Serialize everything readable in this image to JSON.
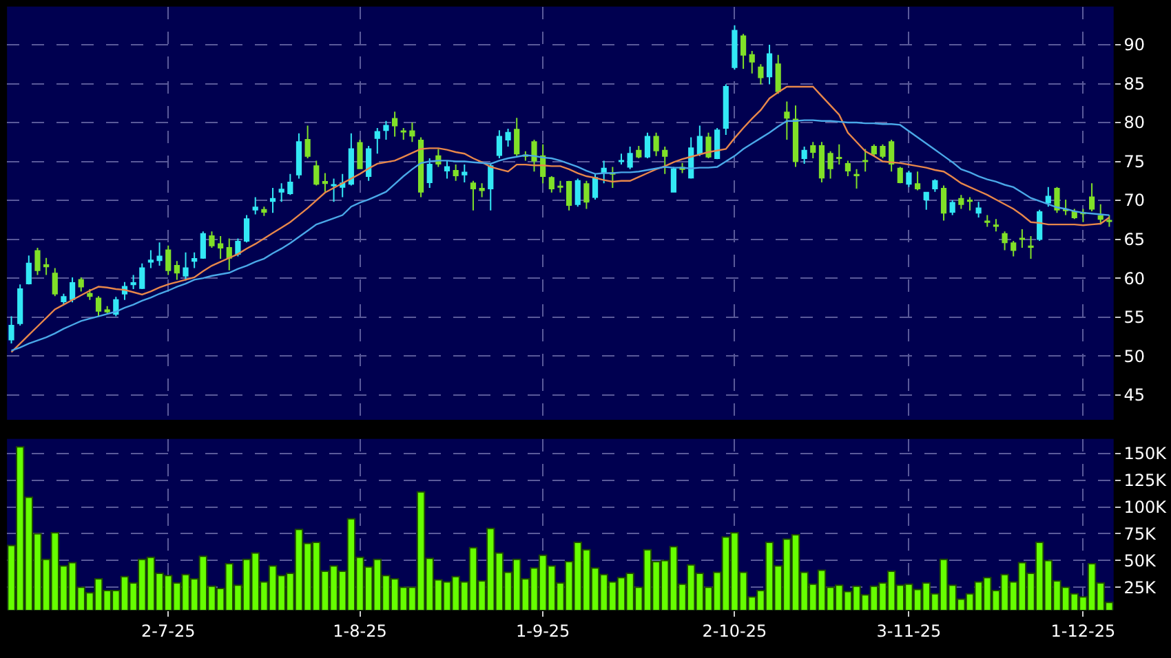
{
  "chart_data": [
    {
      "type": "candlestick",
      "categories": [
        null,
        null,
        null,
        null,
        null,
        null,
        null,
        null,
        null,
        null,
        null,
        null,
        null,
        null,
        null,
        null,
        null,
        null,
        null,
        null,
        null,
        null,
        null,
        null,
        null,
        null,
        null,
        null,
        null,
        null,
        null,
        null,
        null,
        null,
        null,
        null,
        null,
        null,
        null,
        null,
        null,
        null,
        null,
        null,
        null,
        null,
        null,
        null,
        null,
        null,
        null,
        null,
        null,
        null,
        null,
        null,
        null,
        null,
        null,
        null,
        null,
        null,
        null,
        null,
        null,
        null,
        null,
        null,
        null,
        null,
        null,
        null,
        null,
        null,
        null,
        null,
        null,
        null,
        null,
        null,
        null,
        null,
        null,
        null,
        null,
        null,
        null,
        null,
        null,
        null,
        null,
        null,
        null,
        null,
        null,
        null,
        null,
        null,
        null,
        null,
        null,
        null,
        null,
        null,
        null,
        null,
        null,
        null,
        null,
        null,
        null,
        null,
        null,
        null,
        null,
        null,
        null,
        null,
        null,
        null,
        null,
        null,
        null,
        null,
        null,
        null,
        null
      ],
      "ohlc": [
        [
          52.1,
          55.1,
          51.6,
          53.9
        ],
        [
          54.2,
          59.2,
          53.9,
          58.6
        ],
        [
          59.3,
          62.9,
          59.2,
          61.9
        ],
        [
          63.5,
          63.9,
          60.4,
          61.0
        ],
        [
          61.7,
          62.6,
          60.4,
          61.5
        ],
        [
          60.6,
          61.3,
          57.7,
          58.0
        ],
        [
          57.0,
          58.0,
          56.6,
          57.6
        ],
        [
          57.3,
          60.1,
          56.9,
          59.4
        ],
        [
          59.8,
          60.1,
          58.3,
          58.9
        ],
        [
          58.0,
          58.6,
          57.2,
          57.7
        ],
        [
          57.4,
          57.7,
          55.1,
          55.8
        ],
        [
          55.9,
          56.4,
          55.4,
          55.7
        ],
        [
          55.4,
          57.6,
          55.1,
          57.2
        ],
        [
          58.0,
          59.5,
          57.2,
          58.9
        ],
        [
          59.2,
          60.4,
          58.6,
          59.4
        ],
        [
          58.7,
          61.9,
          58.6,
          61.3
        ],
        [
          62.1,
          63.6,
          61.3,
          62.3
        ],
        [
          62.3,
          64.6,
          61.6,
          62.8
        ],
        [
          63.6,
          64.2,
          60.4,
          61.0
        ],
        [
          61.6,
          62.2,
          59.8,
          60.7
        ],
        [
          60.3,
          63.3,
          59.7,
          61.3
        ],
        [
          62.2,
          63.3,
          61.3,
          62.5
        ],
        [
          62.6,
          66.0,
          62.5,
          65.7
        ],
        [
          65.4,
          66.0,
          63.9,
          64.2
        ],
        [
          64.4,
          65.4,
          62.5,
          63.9
        ],
        [
          63.9,
          65.1,
          61.0,
          62.6
        ],
        [
          63.1,
          65.1,
          62.8,
          64.7
        ],
        [
          64.8,
          68.1,
          64.6,
          67.6
        ],
        [
          68.8,
          70.4,
          68.2,
          69.1
        ],
        [
          68.8,
          69.2,
          68.0,
          68.5
        ],
        [
          69.9,
          71.6,
          68.4,
          70.2
        ],
        [
          71.1,
          72.2,
          69.8,
          71.4
        ],
        [
          70.9,
          73.4,
          70.7,
          72.3
        ],
        [
          73.3,
          78.6,
          72.8,
          77.5
        ],
        [
          77.8,
          79.6,
          75.4,
          75.7
        ],
        [
          74.4,
          75.1,
          71.9,
          72.1
        ],
        [
          72.4,
          73.5,
          71.1,
          72.2
        ],
        [
          71.9,
          72.8,
          69.8,
          72.0
        ],
        [
          71.7,
          73.4,
          70.4,
          72.2
        ],
        [
          72.1,
          78.6,
          71.9,
          76.6
        ],
        [
          77.4,
          77.8,
          74.0,
          74.1
        ],
        [
          73.1,
          77.0,
          72.5,
          76.6
        ],
        [
          78.0,
          79.3,
          76.0,
          78.8
        ],
        [
          79.0,
          80.2,
          77.8,
          79.6
        ],
        [
          80.5,
          81.4,
          78.2,
          79.6
        ],
        [
          78.9,
          79.3,
          77.8,
          78.8
        ],
        [
          78.9,
          80.0,
          77.5,
          78.3
        ],
        [
          77.7,
          78.1,
          70.4,
          71.1
        ],
        [
          72.3,
          75.4,
          71.6,
          74.6
        ],
        [
          75.7,
          76.6,
          74.3,
          74.7
        ],
        [
          73.8,
          75.1,
          72.8,
          74.3
        ],
        [
          73.8,
          74.6,
          72.5,
          73.2
        ],
        [
          73.3,
          74.6,
          72.3,
          73.6
        ],
        [
          72.2,
          72.5,
          68.7,
          71.5
        ],
        [
          71.5,
          72.2,
          70.4,
          71.3
        ],
        [
          71.5,
          74.8,
          68.7,
          74.4
        ],
        [
          75.8,
          79.0,
          75.4,
          78.2
        ],
        [
          77.8,
          79.2,
          76.9,
          78.7
        ],
        [
          79.1,
          80.6,
          75.7,
          76.0
        ],
        [
          75.8,
          76.3,
          75.1,
          75.7
        ],
        [
          77.5,
          77.8,
          73.7,
          75.1
        ],
        [
          75.7,
          77.2,
          72.2,
          73.1
        ],
        [
          72.9,
          73.1,
          71.0,
          71.5
        ],
        [
          71.8,
          72.5,
          71.0,
          71.7
        ],
        [
          72.4,
          72.5,
          68.7,
          69.4
        ],
        [
          69.5,
          72.8,
          69.2,
          72.5
        ],
        [
          72.1,
          72.5,
          68.9,
          69.8
        ],
        [
          70.4,
          73.4,
          70.1,
          72.9
        ],
        [
          73.6,
          75.1,
          72.2,
          74.1
        ],
        [
          73.5,
          74.3,
          71.6,
          73.4
        ],
        [
          75.0,
          76.0,
          74.6,
          75.1
        ],
        [
          74.3,
          76.9,
          74.0,
          76.0
        ],
        [
          76.4,
          77.0,
          75.4,
          75.6
        ],
        [
          75.6,
          78.7,
          75.4,
          78.2
        ],
        [
          78.2,
          78.7,
          75.7,
          76.4
        ],
        [
          76.4,
          76.9,
          73.4,
          75.7
        ],
        [
          71.1,
          74.3,
          71.0,
          74.0
        ],
        [
          74.2,
          74.8,
          73.5,
          74.0
        ],
        [
          72.9,
          78.1,
          72.8,
          76.7
        ],
        [
          76.0,
          79.6,
          75.7,
          78.2
        ],
        [
          78.1,
          78.7,
          75.4,
          75.6
        ],
        [
          75.4,
          79.3,
          75.3,
          79.0
        ],
        [
          79.3,
          84.9,
          78.4,
          84.6
        ],
        [
          87.1,
          92.5,
          86.8,
          91.8
        ],
        [
          91.1,
          91.4,
          86.9,
          88.7
        ],
        [
          88.7,
          89.2,
          86.3,
          87.8
        ],
        [
          87.1,
          87.5,
          84.9,
          85.8
        ],
        [
          85.9,
          90.0,
          84.9,
          88.8
        ],
        [
          87.5,
          88.7,
          83.7,
          84.0
        ],
        [
          81.3,
          82.7,
          77.8,
          80.6
        ],
        [
          80.4,
          82.2,
          74.3,
          75.0
        ],
        [
          75.4,
          76.9,
          74.7,
          76.4
        ],
        [
          77.0,
          77.5,
          75.4,
          76.2
        ],
        [
          77.0,
          77.5,
          72.3,
          72.9
        ],
        [
          76.0,
          76.3,
          72.8,
          74.1
        ],
        [
          75.5,
          77.2,
          74.6,
          75.4
        ],
        [
          74.7,
          75.1,
          73.1,
          73.8
        ],
        [
          73.3,
          74.0,
          71.5,
          73.2
        ],
        [
          75.1,
          76.6,
          73.7,
          75.0
        ],
        [
          76.9,
          77.2,
          75.7,
          76.0
        ],
        [
          76.9,
          77.2,
          75.4,
          75.7
        ],
        [
          77.5,
          77.8,
          73.7,
          74.7
        ],
        [
          74.1,
          74.3,
          72.2,
          72.3
        ],
        [
          72.1,
          73.8,
          71.7,
          73.5
        ],
        [
          72.1,
          73.7,
          71.3,
          71.5
        ],
        [
          70.1,
          71.1,
          68.8,
          71.0
        ],
        [
          71.5,
          72.7,
          71.1,
          72.5
        ],
        [
          71.5,
          71.9,
          67.4,
          68.4
        ],
        [
          68.5,
          70.0,
          68.1,
          69.7
        ],
        [
          70.2,
          70.7,
          68.9,
          69.5
        ],
        [
          70.0,
          70.4,
          68.7,
          69.9
        ],
        [
          68.4,
          69.8,
          67.8,
          69.0
        ],
        [
          67.3,
          68.1,
          66.6,
          67.2
        ],
        [
          66.8,
          67.6,
          66.0,
          66.7
        ],
        [
          65.7,
          66.0,
          63.6,
          64.6
        ],
        [
          64.5,
          64.8,
          62.8,
          63.6
        ],
        [
          65.1,
          66.3,
          63.9,
          65.0
        ],
        [
          64.1,
          65.4,
          62.5,
          64.0
        ],
        [
          65.0,
          68.8,
          64.8,
          68.5
        ],
        [
          69.7,
          71.7,
          69.2,
          70.5
        ],
        [
          71.5,
          71.7,
          68.4,
          68.8
        ],
        [
          68.8,
          70.1,
          68.1,
          68.7
        ],
        [
          68.5,
          68.9,
          67.6,
          67.8
        ],
        [
          68.4,
          68.9,
          67.2,
          68.3
        ],
        [
          70.4,
          72.2,
          68.6,
          68.9
        ],
        [
          68.0,
          69.5,
          66.9,
          67.6
        ],
        [
          67.4,
          68.1,
          66.6,
          67.3
        ]
      ],
      "colors": [
        "#33e8f5",
        "#33e8f5",
        "#33e8f5",
        "#80e028",
        "#80e028",
        "#80e028",
        "#33e8f5",
        "#33e8f5",
        "#80e028",
        "#80e028",
        "#80e028",
        "#80e028",
        "#33e8f5",
        "#33e8f5",
        "#33e8f5",
        "#33e8f5",
        "#33e8f5",
        "#33e8f5",
        "#80e028",
        "#80e028",
        "#33e8f5",
        "#33e8f5",
        "#33e8f5",
        "#80e028",
        "#80e028",
        "#80e028",
        "#33e8f5",
        "#33e8f5",
        "#33e8f5",
        "#80e028",
        "#33e8f5",
        "#33e8f5",
        "#33e8f5",
        "#33e8f5",
        "#80e028",
        "#80e028",
        "#80e028",
        "#33e8f5",
        "#33e8f5",
        "#33e8f5",
        "#80e028",
        "#33e8f5",
        "#33e8f5",
        "#33e8f5",
        "#80e028",
        "#80e028",
        "#80e028",
        "#80e028",
        "#33e8f5",
        "#80e028",
        "#33e8f5",
        "#80e028",
        "#33e8f5",
        "#80e028",
        "#80e028",
        "#33e8f5",
        "#33e8f5",
        "#33e8f5",
        "#80e028",
        "#80e028",
        "#80e028",
        "#80e028",
        "#80e028",
        "#80e028",
        "#80e028",
        "#33e8f5",
        "#80e028",
        "#33e8f5",
        "#33e8f5",
        "#80e028",
        "#33e8f5",
        "#33e8f5",
        "#80e028",
        "#33e8f5",
        "#80e028",
        "#80e028",
        "#33e8f5",
        "#80e028",
        "#33e8f5",
        "#33e8f5",
        "#80e028",
        "#33e8f5",
        "#33e8f5",
        "#33e8f5",
        "#80e028",
        "#80e028",
        "#80e028",
        "#33e8f5",
        "#80e028",
        "#80e028",
        "#80e028",
        "#33e8f5",
        "#80e028",
        "#80e028",
        "#80e028",
        "#80e028",
        "#80e028",
        "#80e028",
        "#80e028",
        "#80e028",
        "#80e028",
        "#80e028",
        "#80e028",
        "#33e8f5",
        "#80e028",
        "#33e8f5",
        "#33e8f5",
        "#80e028",
        "#33e8f5",
        "#80e028",
        "#80e028",
        "#33e8f5",
        "#80e028",
        "#80e028",
        "#80e028",
        "#80e028",
        "#80e028",
        "#80e028",
        "#33e8f5",
        "#33e8f5",
        "#80e028",
        "#80e028",
        "#80e028",
        "#80e028",
        "#80e028",
        "#80e028",
        "#80e028"
      ],
      "series": [
        {
          "type": "line",
          "color": "#e8874a",
          "values": [
            50.5,
            51.6,
            52.7,
            53.8,
            54.9,
            56.0,
            56.6,
            57.2,
            57.8,
            58.4,
            58.9,
            58.8,
            58.6,
            58.5,
            58.2,
            57.9,
            58.3,
            58.8,
            59.2,
            59.5,
            59.8,
            60.1,
            60.9,
            61.6,
            62.1,
            62.6,
            63.1,
            63.8,
            64.4,
            65.1,
            65.8,
            66.5,
            67.2,
            68.1,
            69.0,
            70.0,
            71.0,
            71.6,
            72.2,
            72.8,
            73.4,
            74.1,
            74.7,
            74.9,
            75.1,
            75.6,
            76.1,
            76.6,
            76.7,
            76.7,
            76.5,
            76.2,
            76.0,
            75.4,
            74.9,
            74.3,
            74.0,
            73.7,
            74.6,
            74.6,
            74.5,
            74.5,
            74.4,
            74.4,
            74.0,
            73.5,
            73.1,
            72.9,
            72.6,
            72.4,
            72.5,
            72.5,
            73.0,
            73.5,
            74.0,
            74.4,
            74.9,
            75.3,
            75.6,
            75.9,
            76.2,
            76.4,
            76.6,
            78.0,
            79.3,
            80.5,
            81.6,
            83.1,
            83.9,
            84.6,
            84.6,
            84.6,
            84.6,
            83.4,
            82.2,
            81.0,
            78.7,
            77.5,
            76.3,
            75.7,
            75.0,
            74.9,
            74.8,
            74.6,
            74.4,
            74.2,
            73.9,
            73.7,
            73.0,
            72.2,
            71.7,
            71.2,
            70.7,
            70.1,
            69.5,
            68.9,
            68.1,
            67.2,
            67.1,
            66.9,
            66.9,
            66.9,
            66.9,
            66.8,
            66.9,
            67.0,
            67.8
          ]
        },
        {
          "type": "line",
          "color": "#4aa8e8",
          "values": [
            50.7,
            51.1,
            51.6,
            52.0,
            52.4,
            52.9,
            53.5,
            54.0,
            54.5,
            54.8,
            55.1,
            55.4,
            55.7,
            56.2,
            56.6,
            57.1,
            57.5,
            58.0,
            58.4,
            58.9,
            59.3,
            59.8,
            60.0,
            60.3,
            60.5,
            60.7,
            61.2,
            61.6,
            62.1,
            62.5,
            63.2,
            63.8,
            64.5,
            65.3,
            66.1,
            66.9,
            67.3,
            67.7,
            68.1,
            69.2,
            69.7,
            70.1,
            70.6,
            71.1,
            72.1,
            73.1,
            74.0,
            74.8,
            75.0,
            75.1,
            75.1,
            75.0,
            75.0,
            74.9,
            74.8,
            74.7,
            75.1,
            75.4,
            75.6,
            75.8,
            75.7,
            75.5,
            75.4,
            75.1,
            74.7,
            74.3,
            73.8,
            73.4,
            73.5,
            73.5,
            73.6,
            73.6,
            73.7,
            73.9,
            74.1,
            74.3,
            74.2,
            74.2,
            74.1,
            74.2,
            74.2,
            74.3,
            75.0,
            75.7,
            76.6,
            77.3,
            78.0,
            78.7,
            79.5,
            80.2,
            80.2,
            80.3,
            80.3,
            80.2,
            80.2,
            80.1,
            80.0,
            80.0,
            79.9,
            79.9,
            79.8,
            79.8,
            79.7,
            78.9,
            78.1,
            77.3,
            76.5,
            75.7,
            74.9,
            74.0,
            73.6,
            73.1,
            72.7,
            72.4,
            72.0,
            71.7,
            71.0,
            70.3,
            69.9,
            69.5,
            69.1,
            68.9,
            68.6,
            68.4,
            68.3,
            68.2,
            68.1
          ]
        }
      ],
      "ylim": [
        41.8,
        94.9
      ],
      "yticks": [
        45,
        50,
        55,
        60,
        65,
        70,
        75,
        80,
        85,
        90
      ],
      "grid": true,
      "tick_labels": "y"
    },
    {
      "type": "bar",
      "categories": [
        null,
        null,
        null,
        null,
        null,
        null,
        null,
        null,
        null,
        null,
        null,
        null,
        null,
        null,
        null,
        null,
        null,
        null,
        "2-7-25",
        null,
        null,
        null,
        null,
        null,
        null,
        null,
        null,
        null,
        null,
        null,
        null,
        null,
        null,
        null,
        null,
        null,
        null,
        null,
        null,
        null,
        "1-8-25",
        null,
        null,
        null,
        null,
        null,
        null,
        null,
        null,
        null,
        null,
        null,
        null,
        null,
        null,
        null,
        null,
        null,
        null,
        null,
        null,
        "1-9-25",
        null,
        null,
        null,
        null,
        null,
        null,
        null,
        null,
        null,
        null,
        null,
        null,
        null,
        null,
        null,
        null,
        null,
        null,
        null,
        null,
        null,
        "2-10-25",
        null,
        null,
        null,
        null,
        null,
        null,
        null,
        null,
        null,
        null,
        null,
        null,
        null,
        null,
        null,
        null,
        null,
        null,
        null,
        "3-11-25",
        null,
        null,
        null,
        null,
        null,
        null,
        null,
        null,
        null,
        null,
        null,
        null,
        null,
        null,
        null,
        null,
        null,
        null,
        null,
        "1-12-25",
        null,
        null,
        null
      ],
      "values": [
        64,
        156,
        109,
        75,
        51,
        76,
        45,
        48,
        25,
        20,
        33,
        22,
        22,
        35,
        29,
        51,
        53,
        38,
        36,
        29,
        37,
        33,
        54,
        26,
        24,
        47,
        27,
        51,
        57,
        30,
        45,
        36,
        38,
        79,
        66,
        67,
        40,
        45,
        40,
        89,
        53,
        44,
        51,
        36,
        33,
        25,
        25,
        114,
        52,
        32,
        30,
        35,
        30,
        62,
        31,
        80,
        57,
        39,
        51,
        33,
        43,
        55,
        45,
        29,
        49,
        67,
        60,
        43,
        37,
        30,
        34,
        38,
        25,
        60,
        49,
        50,
        63,
        28,
        46,
        38,
        25,
        39,
        72,
        76,
        39,
        16,
        22,
        67,
        45,
        70,
        74,
        39,
        28,
        41,
        25,
        27,
        21,
        26,
        18,
        26,
        29,
        40,
        27,
        28,
        23,
        29,
        19,
        51,
        27,
        14,
        19,
        30,
        34,
        22,
        37,
        30,
        48,
        38,
        67,
        50,
        31,
        25,
        19,
        16,
        47,
        29,
        11
      ],
      "color": "#66ff00",
      "ylim": [
        3.9,
        163.5
      ],
      "yticks": [
        {
          "value": 25,
          "label": "25K"
        },
        {
          "value": 50,
          "label": "50K"
        },
        {
          "value": 75,
          "label": "75K"
        },
        {
          "value": 100,
          "label": "100K"
        },
        {
          "value": 125,
          "label": "125K"
        },
        {
          "value": 150,
          "label": "150K"
        }
      ],
      "grid": true
    }
  ]
}
